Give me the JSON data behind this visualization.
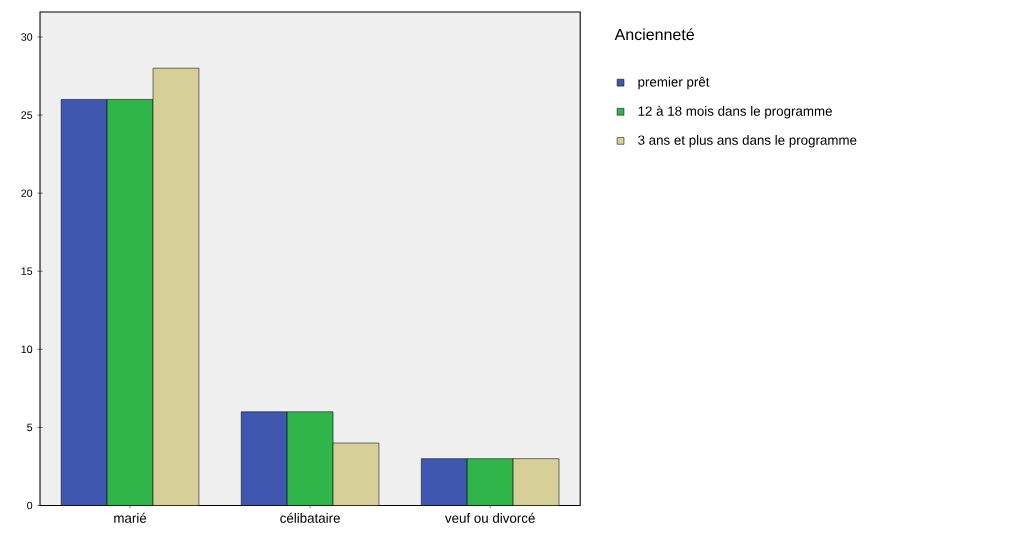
{
  "chart_data": {
    "type": "bar",
    "legend_title": "Ancienneté",
    "categories": [
      "marié",
      "célibataire",
      "veuf ou divorcé"
    ],
    "series": [
      {
        "name": "premier prêt",
        "color": "#3f57ae",
        "values": [
          26,
          6,
          3
        ]
      },
      {
        "name": "12 à 18 mois dans le programme",
        "color": "#2fb54a",
        "values": [
          26,
          6,
          3
        ]
      },
      {
        "name": "3 ans et plus ans dans  le programme",
        "color": "#d6cf97",
        "values": [
          28,
          4,
          3
        ]
      }
    ],
    "ylim": [
      0,
      31.6
    ],
    "yticks": [
      0,
      5,
      10,
      15,
      20,
      25,
      30
    ],
    "legend": "right"
  }
}
